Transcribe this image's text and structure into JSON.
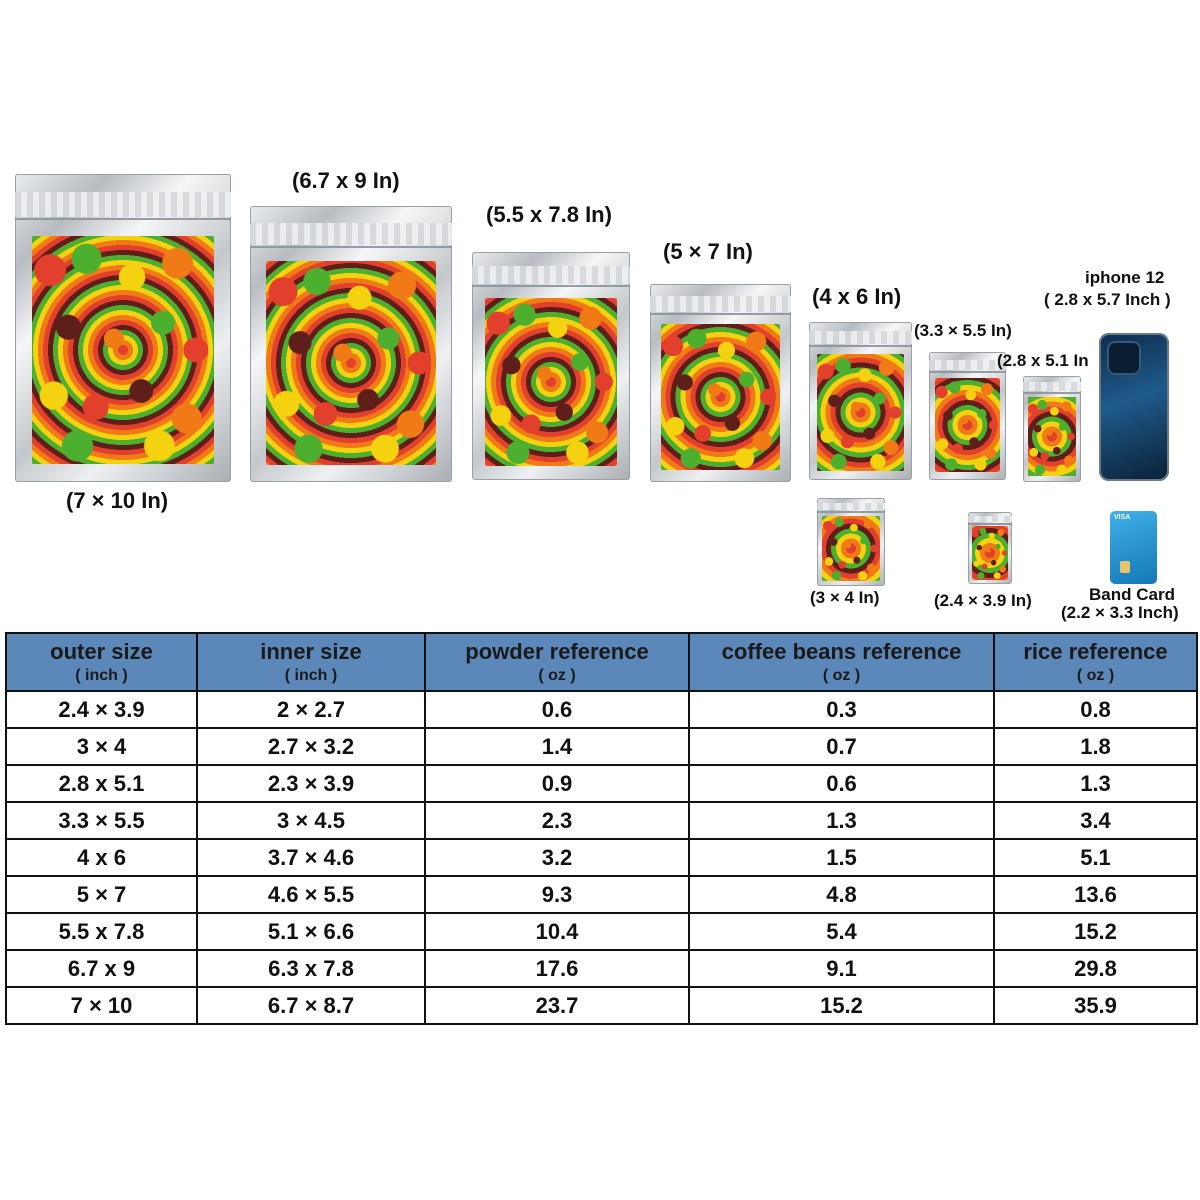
{
  "bags": [
    {
      "label": "(7 × 10 In)"
    },
    {
      "label": "(6.7 x 9 In)"
    },
    {
      "label": "(5.5 x 7.8 In)"
    },
    {
      "label": "(5 × 7 In)"
    },
    {
      "label": "(4 x 6 In)"
    },
    {
      "label": "(3.3 × 5.5 In)"
    },
    {
      "label": "(2.8 x 5.1 In"
    },
    {
      "label": "(3 × 4 In)"
    },
    {
      "label": "(2.4 × 3.9 In)"
    }
  ],
  "phone": {
    "title": "iphone 12",
    "size": "( 2.8 x 5.7 Inch )"
  },
  "card": {
    "title": "Band Card",
    "size": "(2.2 × 3.3 Inch)",
    "brand": "VISA"
  },
  "table": {
    "headers": [
      {
        "title": "outer size",
        "unit": "( inch )"
      },
      {
        "title": "inner size",
        "unit": "( inch )"
      },
      {
        "title": "powder reference",
        "unit": "( oz )"
      },
      {
        "title": "coffee beans reference",
        "unit": "( oz )"
      },
      {
        "title": "rice reference",
        "unit": "( oz )"
      }
    ],
    "rows": [
      [
        "2.4 × 3.9",
        "2 × 2.7",
        "0.6",
        "0.3",
        "0.8"
      ],
      [
        "3 × 4",
        "2.7 × 3.2",
        "1.4",
        "0.7",
        "1.8"
      ],
      [
        "2.8 x 5.1",
        "2.3 × 3.9",
        "0.9",
        "0.6",
        "1.3"
      ],
      [
        "3.3 × 5.5",
        "3 × 4.5",
        "2.3",
        "1.3",
        "3.4"
      ],
      [
        "4 x 6",
        "3.7 × 4.6",
        "3.2",
        "1.5",
        "5.1"
      ],
      [
        "5 × 7",
        "4.6 × 5.5",
        "9.3",
        "4.8",
        "13.6"
      ],
      [
        "5.5 x 7.8",
        "5.1 × 6.6",
        "10.4",
        "5.4",
        "15.2"
      ],
      [
        "6.7 x 9",
        "6.3 x 7.8",
        "17.6",
        "9.1",
        "29.8"
      ],
      [
        "7 × 10",
        "6.7 × 8.7",
        "23.7",
        "15.2",
        "35.9"
      ]
    ]
  }
}
